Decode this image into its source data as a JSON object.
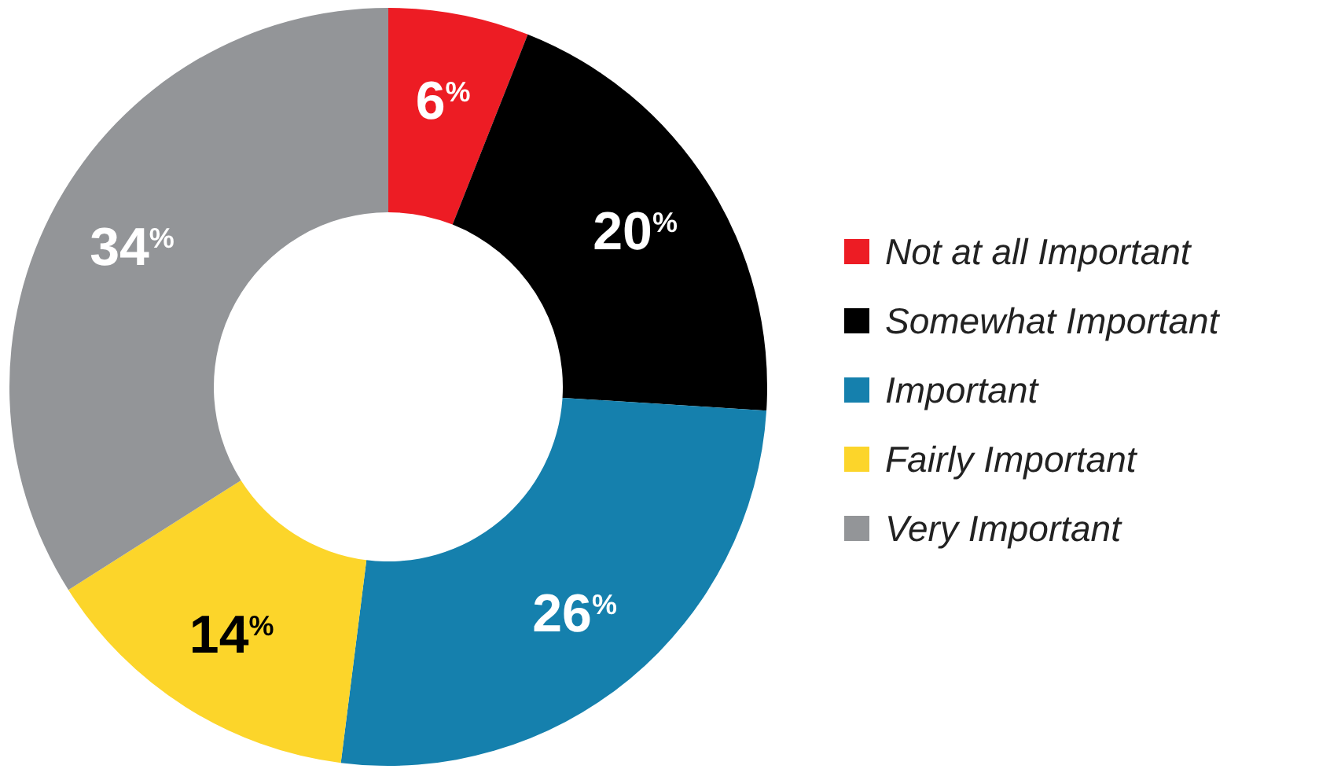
{
  "chart_data": {
    "type": "donut",
    "categories": [
      "Not at all Important",
      "Somewhat Important",
      "Important",
      "Fairly Important",
      "Very Important"
    ],
    "values": [
      6,
      20,
      26,
      14,
      34
    ],
    "colors": [
      "#ed1c24",
      "#000000",
      "#1580ad",
      "#fcd52a",
      "#939598"
    ],
    "value_labels": [
      "6$^{%}$",
      "20$^{%}$",
      "26$^{%}$",
      "14$^{%}$",
      "34$^{%}$"
    ],
    "legend": "right"
  }
}
